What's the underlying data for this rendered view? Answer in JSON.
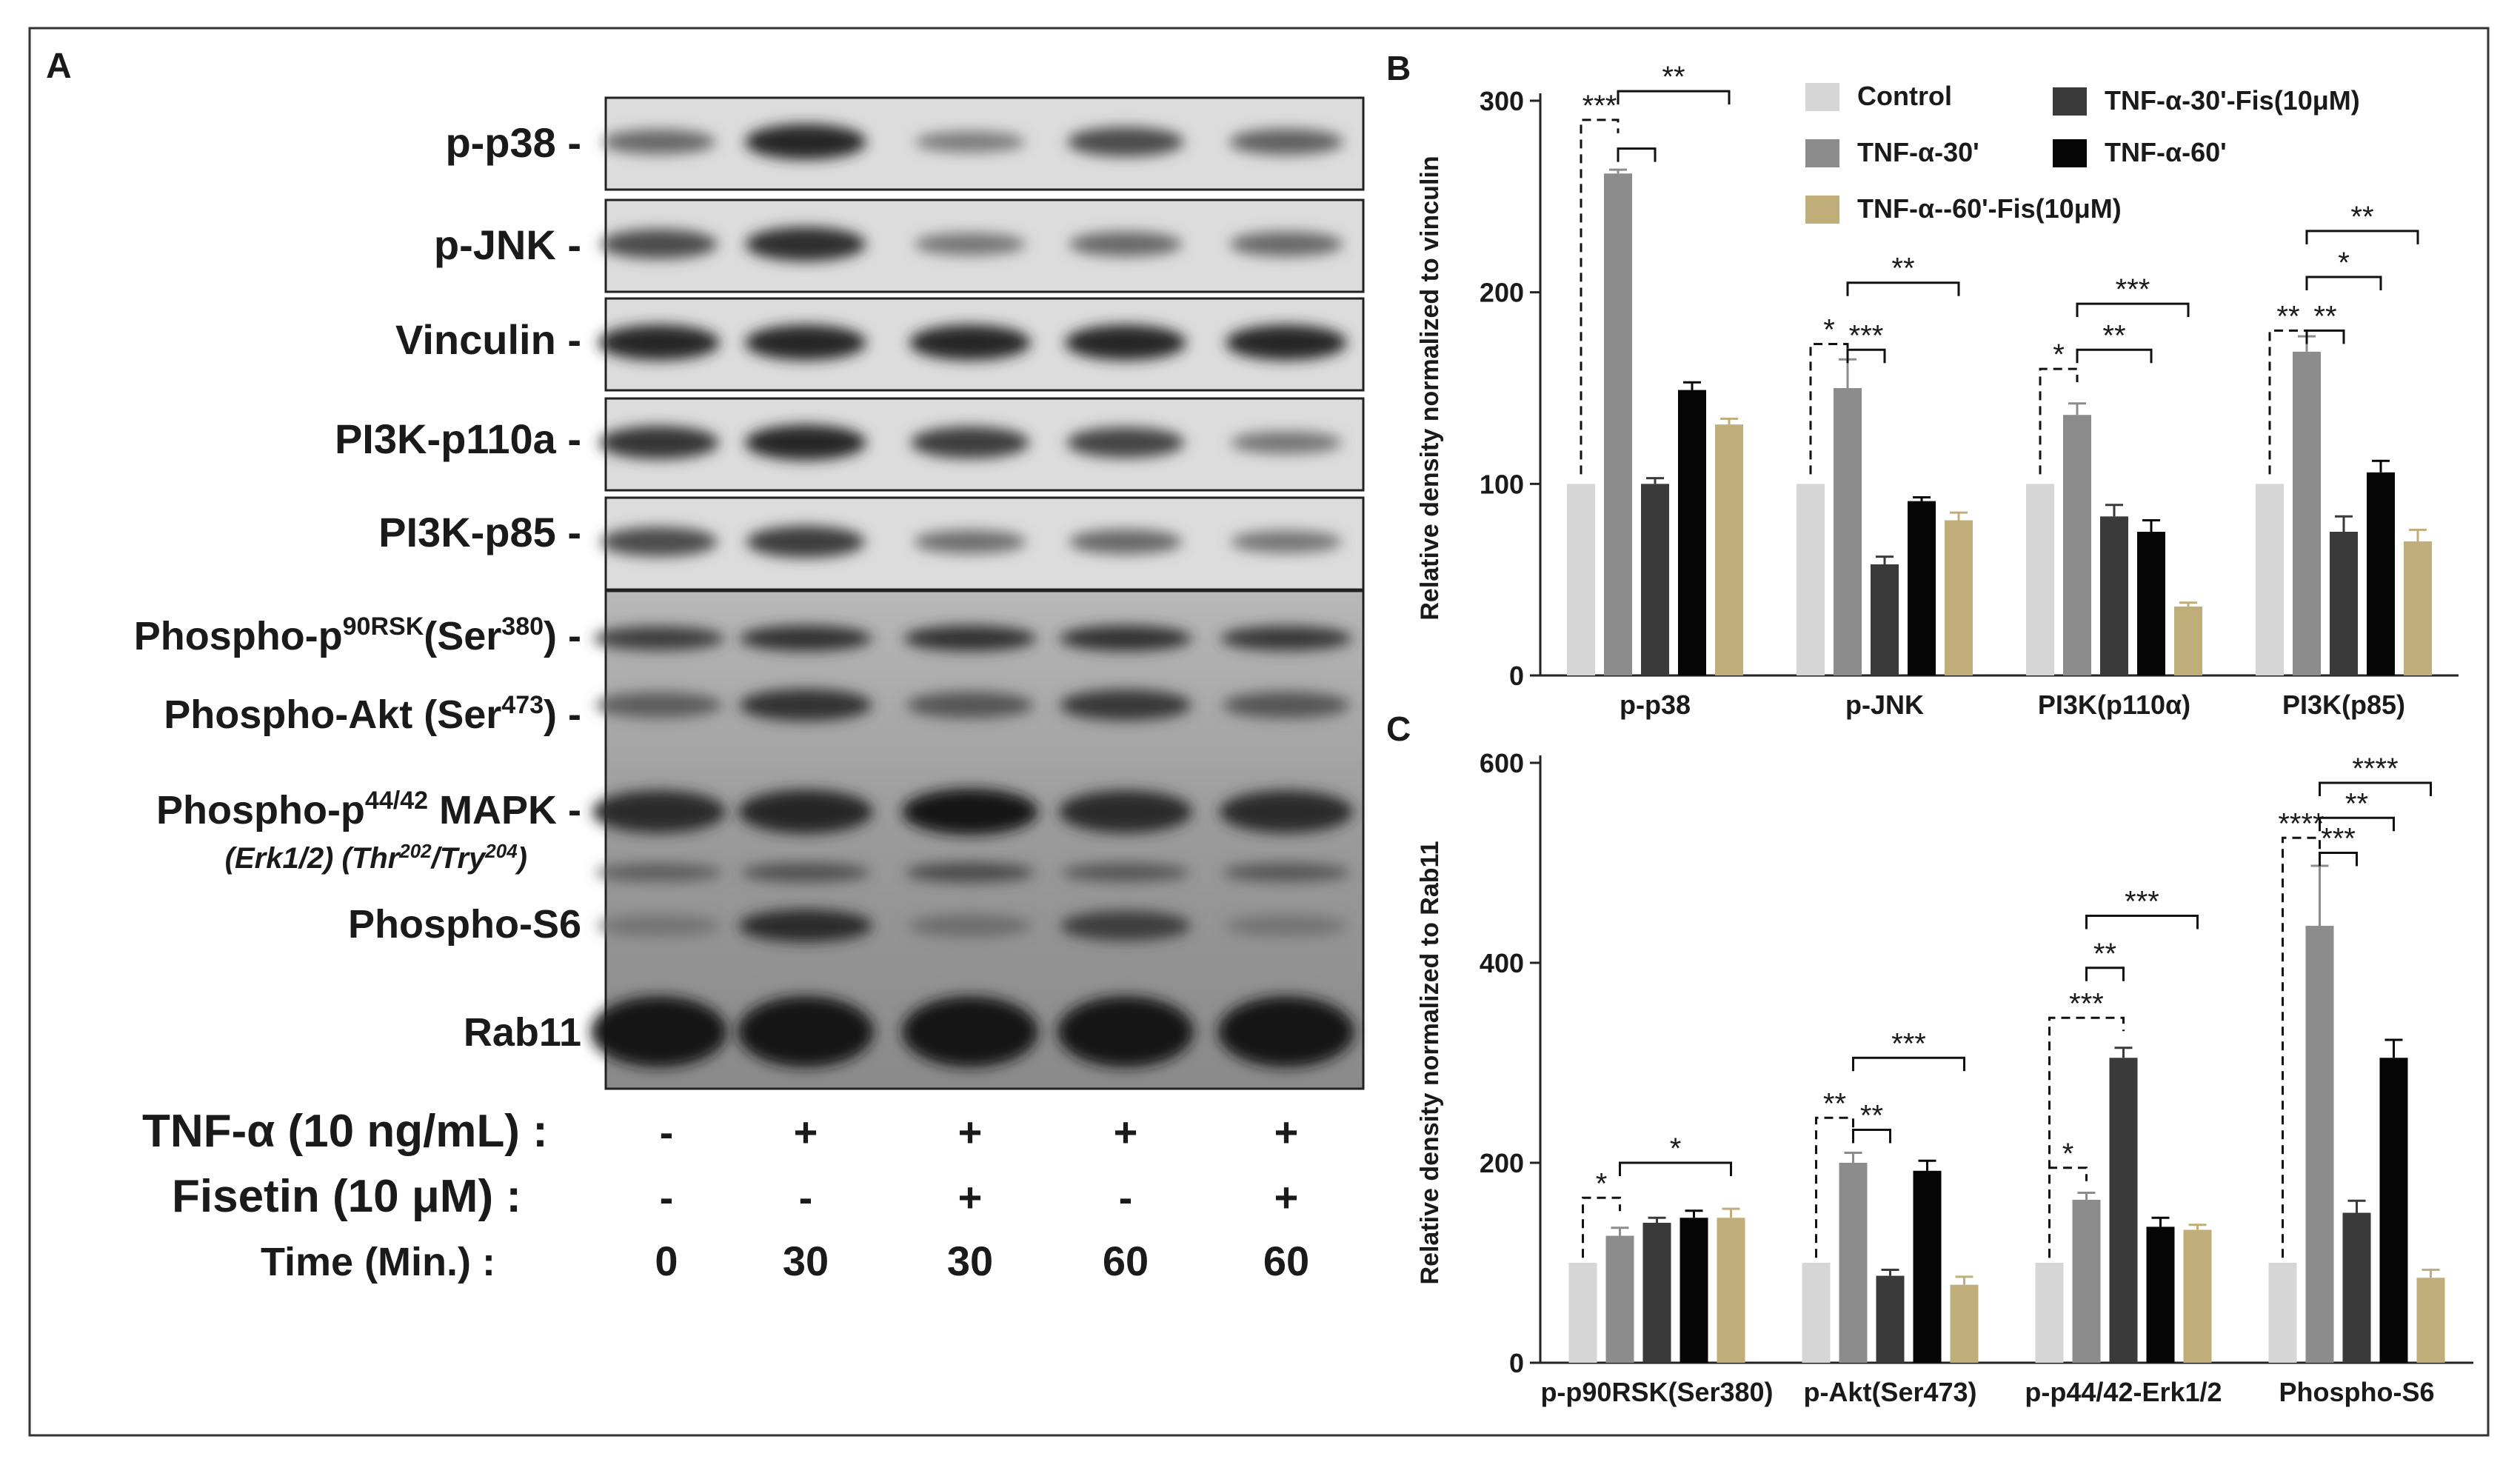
{
  "panel_a": {
    "label": "A",
    "proteins": [
      "p-p38",
      "p-JNK",
      "Vinculin",
      "PI3K-p110a",
      "PI3K-p85"
    ],
    "rsk_label": "Phospho-p90RSK(Ser380)",
    "akt_label": "Phospho-Akt (Ser473)",
    "mapk_label": "Phospho-p44/42 MAPK",
    "mapk_sub": "(Erk1/2)(Thr202/Try204)",
    "s6_label": "Phospho-S6",
    "rab_label": "Rab11",
    "conditions": [
      {
        "label": "TNF-α (10 ng/mL) :",
        "values": [
          "-",
          "+",
          "+",
          "+",
          "+"
        ]
      },
      {
        "label": "Fisetin (10 μM)  :",
        "values": [
          "-",
          "-",
          "+",
          "-",
          "+"
        ]
      },
      {
        "label": "Time (Min.)     :",
        "values": [
          "0",
          "30",
          "30",
          "60",
          "60"
        ]
      }
    ],
    "blot_intensity": [
      [
        0.55,
        1.0,
        0.4,
        0.75,
        0.6
      ],
      [
        0.75,
        0.95,
        0.45,
        0.55,
        0.55
      ],
      [
        1.0,
        1.0,
        1.0,
        1.0,
        1.0
      ],
      [
        0.9,
        1.0,
        0.85,
        0.8,
        0.45
      ],
      [
        0.75,
        0.85,
        0.5,
        0.55,
        0.45
      ]
    ]
  },
  "legend": [
    {
      "name": "Control",
      "color": "#d6d6d6"
    },
    {
      "name": "TNF-α-30'",
      "color": "#8c8c8c"
    },
    {
      "name": "TNF-α--60'-Fis(10μM)",
      "color": "#bfae7a"
    },
    {
      "name": "TNF-α-30'-Fis(10μM)",
      "color": "#3a3a3a"
    },
    {
      "name": "TNF-α-60'",
      "color": "#050505"
    }
  ],
  "chart_data": [
    {
      "panel": "B",
      "type": "bar",
      "ylabel": "Relative density normalized to vinculin",
      "ylim": [
        0,
        300
      ],
      "yticks": [
        0,
        100,
        200,
        300
      ],
      "categories": [
        "p-p38",
        "p-JNK",
        "PI3K(p110α)",
        "PI3K(p85)"
      ],
      "series": [
        {
          "name": "Control",
          "values": [
            100,
            100,
            100,
            100
          ],
          "errors": [
            0,
            0,
            0,
            0
          ]
        },
        {
          "name": "TNF-α-30'",
          "values": [
            262,
            150,
            136,
            169
          ],
          "errors": [
            2,
            15,
            6,
            8
          ]
        },
        {
          "name": "TNF-α-30'-Fis(10μM)",
          "values": [
            100,
            58,
            83,
            75
          ],
          "errors": [
            3,
            4,
            6,
            8
          ]
        },
        {
          "name": "TNF-α-60'",
          "values": [
            149,
            91,
            75,
            106
          ],
          "errors": [
            4,
            2,
            6,
            6
          ]
        },
        {
          "name": "TNF-α--60'-Fis(10μM)",
          "values": [
            131,
            81,
            36,
            70
          ],
          "errors": [
            3,
            4,
            2,
            6
          ]
        }
      ],
      "significance": [
        {
          "cat": 0,
          "from": 0,
          "to": 1,
          "label": "***",
          "dashed": true,
          "y": 290
        },
        {
          "cat": 0,
          "from": 1,
          "to": 2,
          "label": "",
          "dashed": false,
          "y": 275
        },
        {
          "cat": 0,
          "from": 1,
          "to": 4,
          "label": "**",
          "dashed": false,
          "y": 305
        },
        {
          "cat": 1,
          "from": 0,
          "to": 1,
          "label": "*",
          "dashed": true,
          "y": 173
        },
        {
          "cat": 1,
          "from": 1,
          "to": 2,
          "label": "***",
          "dashed": false,
          "y": 170
        },
        {
          "cat": 1,
          "from": 1,
          "to": 4,
          "label": "**",
          "dashed": false,
          "y": 205
        },
        {
          "cat": 2,
          "from": 0,
          "to": 1,
          "label": "*",
          "dashed": true,
          "y": 160
        },
        {
          "cat": 2,
          "from": 1,
          "to": 3,
          "label": "**",
          "dashed": false,
          "y": 170
        },
        {
          "cat": 2,
          "from": 1,
          "to": 4,
          "label": "***",
          "dashed": false,
          "y": 194
        },
        {
          "cat": 3,
          "from": 0,
          "to": 1,
          "label": "**",
          "dashed": true,
          "y": 180
        },
        {
          "cat": 3,
          "from": 1,
          "to": 2,
          "label": "**",
          "dashed": false,
          "y": 180
        },
        {
          "cat": 3,
          "from": 1,
          "to": 3,
          "label": "*",
          "dashed": false,
          "y": 208
        },
        {
          "cat": 3,
          "from": 1,
          "to": 4,
          "label": "**",
          "dashed": false,
          "y": 232
        }
      ]
    },
    {
      "panel": "C",
      "type": "bar",
      "ylabel": "Relative density normalized to  Rab11",
      "ylim": [
        0,
        600
      ],
      "yticks": [
        0,
        200,
        400,
        600
      ],
      "categories": [
        "p-p90RSK(Ser380)",
        "p-Akt(Ser473)",
        "p-p44/42-Erk1/2",
        "Phospho-S6"
      ],
      "series": [
        {
          "name": "Control",
          "values": [
            100,
            100,
            100,
            100
          ],
          "errors": [
            0,
            0,
            0,
            0
          ]
        },
        {
          "name": "TNF-α-30'",
          "values": [
            127,
            200,
            163,
            437
          ],
          "errors": [
            8,
            10,
            7,
            60
          ]
        },
        {
          "name": "TNF-α-30'-Fis(10μM)",
          "values": [
            140,
            87,
            305,
            150
          ],
          "errors": [
            5,
            6,
            10,
            12
          ]
        },
        {
          "name": "TNF-α-60'",
          "values": [
            145,
            192,
            136,
            305
          ],
          "errors": [
            7,
            10,
            9,
            18
          ]
        },
        {
          "name": "TNF-α--60'-Fis(10μM)",
          "values": [
            145,
            78,
            133,
            85
          ],
          "errors": [
            9,
            8,
            5,
            8
          ]
        }
      ],
      "significance": [
        {
          "cat": 0,
          "from": 0,
          "to": 1,
          "label": "*",
          "dashed": true,
          "y": 165
        },
        {
          "cat": 0,
          "from": 1,
          "to": 4,
          "label": "*",
          "dashed": false,
          "y": 200
        },
        {
          "cat": 1,
          "from": 0,
          "to": 1,
          "label": "**",
          "dashed": true,
          "y": 245
        },
        {
          "cat": 1,
          "from": 1,
          "to": 2,
          "label": "**",
          "dashed": false,
          "y": 233
        },
        {
          "cat": 1,
          "from": 1,
          "to": 4,
          "label": "***",
          "dashed": false,
          "y": 305
        },
        {
          "cat": 2,
          "from": 0,
          "to": 1,
          "label": "*",
          "dashed": true,
          "y": 195
        },
        {
          "cat": 2,
          "from": 0,
          "to": 2,
          "label": "***",
          "dashed": true,
          "y": 345
        },
        {
          "cat": 2,
          "from": 1,
          "to": 2,
          "label": "**",
          "dashed": false,
          "y": 395
        },
        {
          "cat": 2,
          "from": 1,
          "to": 4,
          "label": "***",
          "dashed": false,
          "y": 447
        },
        {
          "cat": 3,
          "from": 0,
          "to": 1,
          "label": "****",
          "dashed": true,
          "y": 525
        },
        {
          "cat": 3,
          "from": 1,
          "to": 2,
          "label": "***",
          "dashed": false,
          "y": 510
        },
        {
          "cat": 3,
          "from": 1,
          "to": 3,
          "label": "**",
          "dashed": false,
          "y": 545
        },
        {
          "cat": 3,
          "from": 1,
          "to": 4,
          "label": "****",
          "dashed": false,
          "y": 580
        }
      ]
    }
  ]
}
